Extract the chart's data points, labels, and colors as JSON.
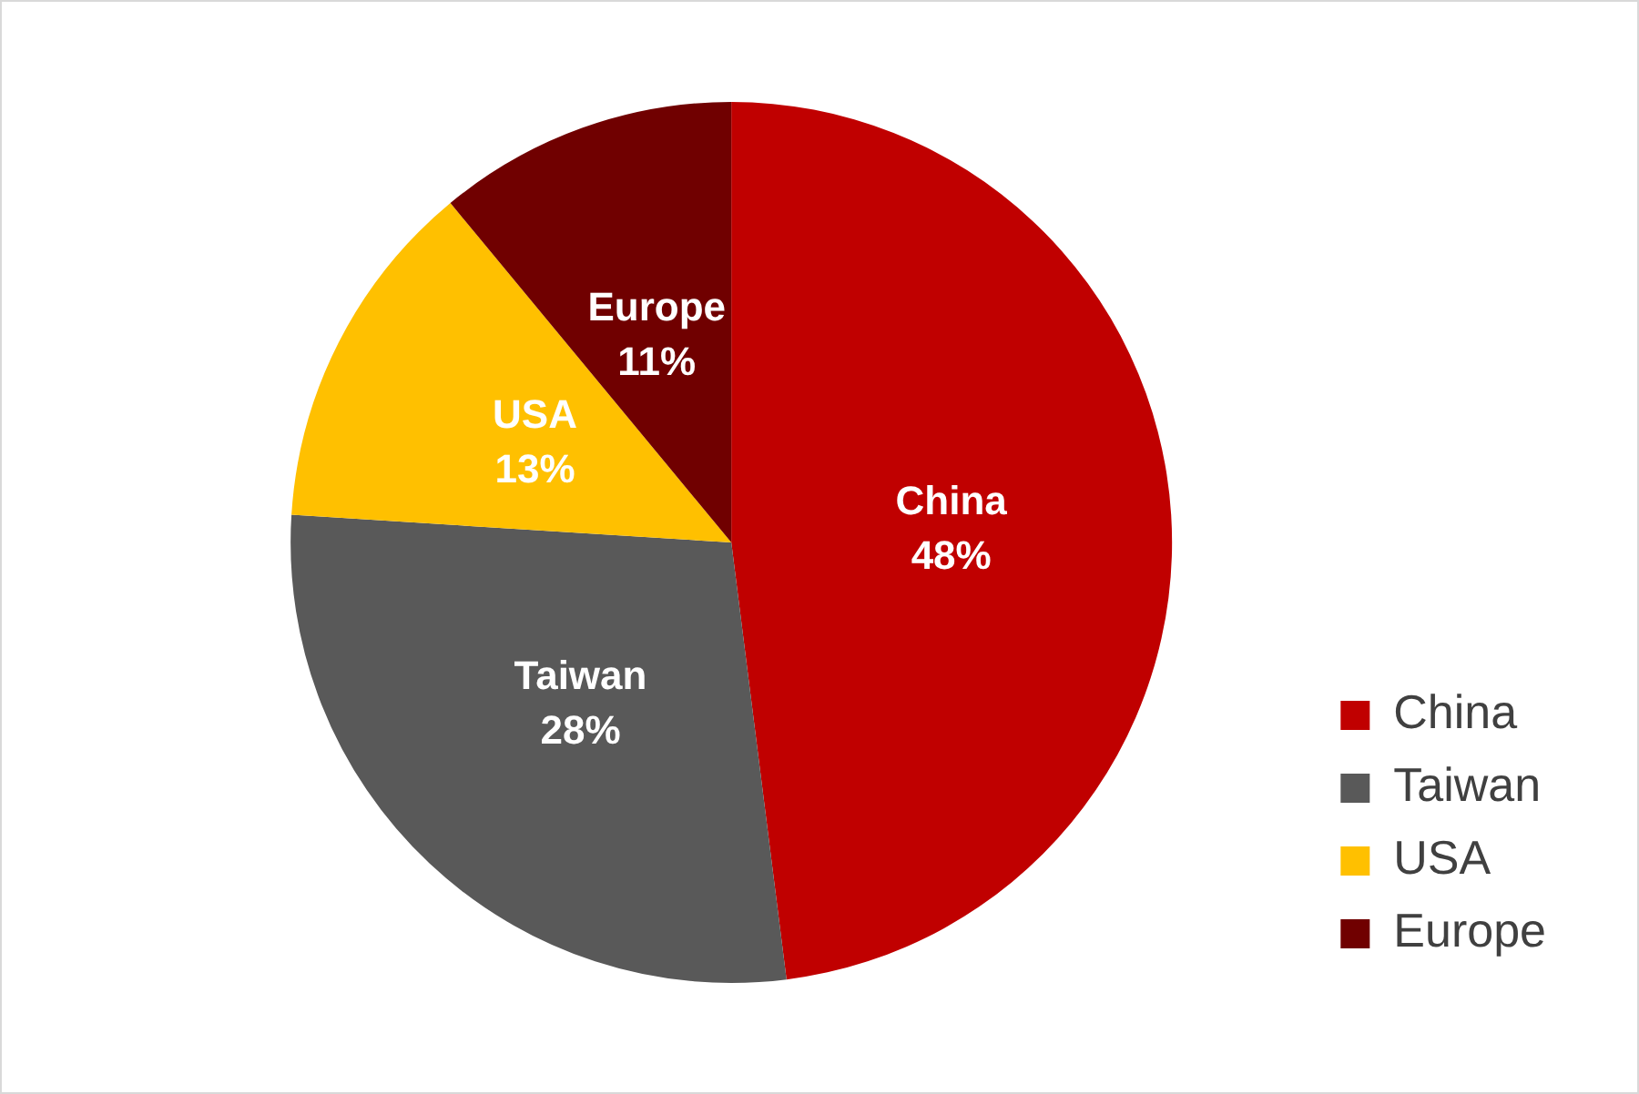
{
  "chart_data": {
    "type": "pie",
    "categories": [
      "China",
      "Taiwan",
      "USA",
      "Europe"
    ],
    "values": [
      48,
      28,
      13,
      11
    ],
    "colors": [
      "#c00000",
      "#595959",
      "#ffc000",
      "#700000"
    ],
    "value_labels": [
      "48%",
      "28%",
      "13%",
      "11%"
    ],
    "legend": "bottom right"
  }
}
